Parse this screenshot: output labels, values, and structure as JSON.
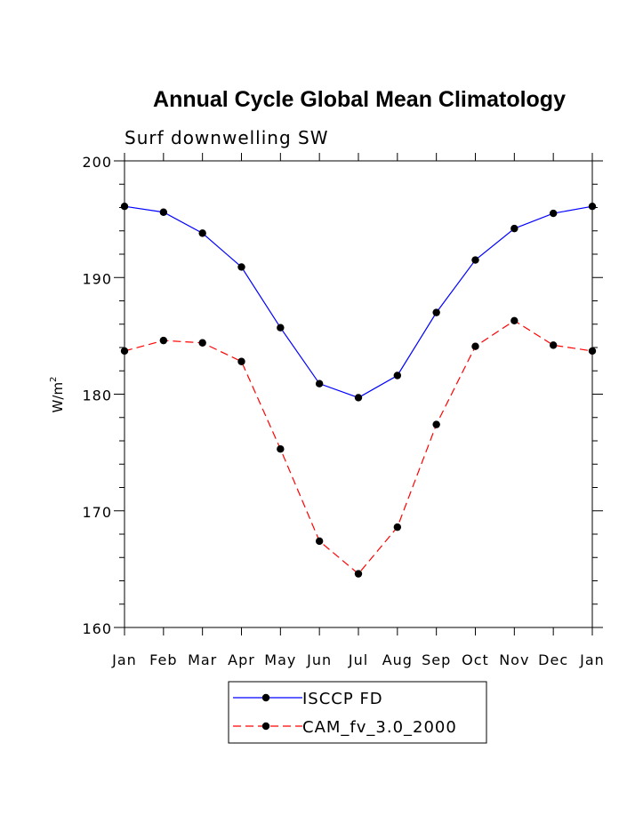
{
  "chart_data": {
    "type": "line",
    "title": "Annual Cycle Global Mean Climatology",
    "subtitle": "Surf downwelling SW",
    "xlabel": "",
    "ylabel": "W/m",
    "ylabel_superscript": "2",
    "ylim": [
      160,
      200
    ],
    "yticks": [
      "160",
      "170",
      "180",
      "190",
      "200"
    ],
    "categories": [
      "Jan",
      "Feb",
      "Mar",
      "Apr",
      "May",
      "Jun",
      "Jul",
      "Aug",
      "Sep",
      "Oct",
      "Nov",
      "Dec",
      "Jan"
    ],
    "series": [
      {
        "name": "ISCCP FD",
        "color": "#0000ff",
        "style": "solid",
        "values": [
          196.1,
          195.6,
          193.8,
          190.9,
          185.7,
          180.9,
          179.7,
          181.6,
          187.0,
          191.5,
          194.2,
          195.5,
          196.1
        ]
      },
      {
        "name": "CAM_fv_3.0_2000",
        "color": "#ff0000",
        "style": "dashed",
        "values": [
          183.7,
          184.6,
          184.4,
          182.8,
          175.3,
          167.4,
          164.6,
          168.6,
          177.4,
          184.1,
          186.3,
          184.2,
          183.7
        ]
      }
    ],
    "legend_position": "bottom-center"
  }
}
